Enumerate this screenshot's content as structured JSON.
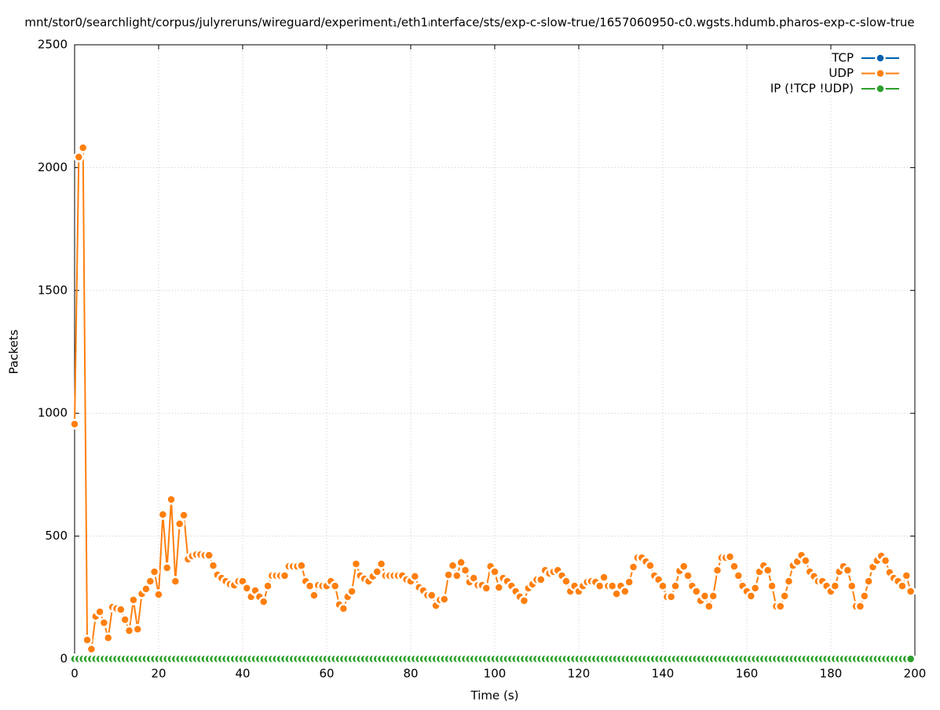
{
  "chart_data": {
    "type": "line",
    "title": "mnt/stor0/searchlight/corpus/julyreruns/wireguard/experiment₁/eth1ᵢnterface/sts/exp-c-slow-true/1657060950-c0.wgsts.hdumb.pharos-exp-c-slow-true",
    "x_label": "Time (s)",
    "y_label": "Packets",
    "x": [
      0,
      1,
      2,
      3,
      4,
      5,
      6,
      7,
      8,
      9,
      10,
      11,
      12,
      13,
      14,
      15,
      16,
      17,
      18,
      19,
      20,
      21,
      22,
      23,
      24,
      25,
      26,
      27,
      28,
      29,
      30,
      31,
      32,
      33,
      34,
      35,
      36,
      37,
      38,
      39,
      40,
      41,
      42,
      43,
      44,
      45,
      46,
      47,
      48,
      49,
      50,
      51,
      52,
      53,
      54,
      55,
      56,
      57,
      58,
      59,
      60,
      61,
      62,
      63,
      64,
      65,
      66,
      67,
      68,
      69,
      70,
      71,
      72,
      73,
      74,
      75,
      76,
      77,
      78,
      79,
      80,
      81,
      82,
      83,
      84,
      85,
      86,
      87,
      88,
      89,
      90,
      91,
      92,
      93,
      94,
      95,
      96,
      97,
      98,
      99,
      100,
      101,
      102,
      103,
      104,
      105,
      106,
      107,
      108,
      109,
      110,
      111,
      112,
      113,
      114,
      115,
      116,
      117,
      118,
      119,
      120,
      121,
      122,
      123,
      124,
      125,
      126,
      127,
      128,
      129,
      130,
      131,
      132,
      133,
      134,
      135,
      136,
      137,
      138,
      139,
      140,
      141,
      142,
      143,
      144,
      145,
      146,
      147,
      148,
      149,
      150,
      151,
      152,
      153,
      154,
      155,
      156,
      157,
      158,
      159,
      160,
      161,
      162,
      163,
      164,
      165,
      166,
      167,
      168,
      169,
      170,
      171,
      172,
      173,
      174,
      175,
      176,
      177,
      178,
      179,
      180,
      181,
      182,
      183,
      184,
      185,
      186,
      187,
      188,
      189,
      190,
      191,
      192,
      193,
      194,
      195,
      196,
      197,
      198,
      199
    ],
    "series": [
      {
        "name": "TCP",
        "color": "#0060ad",
        "values": [
          0,
          0,
          0,
          0,
          0,
          0,
          0,
          0,
          0,
          0,
          0,
          0,
          0,
          0,
          0,
          0,
          0,
          0,
          0,
          0,
          0,
          0,
          0,
          0,
          0,
          0,
          0,
          0,
          0,
          0,
          0,
          0,
          0,
          0,
          0,
          0,
          0,
          0,
          0,
          0,
          0,
          0,
          0,
          0,
          0,
          0,
          0,
          0,
          0,
          0,
          0,
          0,
          0,
          0,
          0,
          0,
          0,
          0,
          0,
          0,
          0,
          0,
          0,
          0,
          0,
          0,
          0,
          0,
          0,
          0,
          0,
          0,
          0,
          0,
          0,
          0,
          0,
          0,
          0,
          0,
          0,
          0,
          0,
          0,
          0,
          0,
          0,
          0,
          0,
          0,
          0,
          0,
          0,
          0,
          0,
          0,
          0,
          0,
          0,
          0,
          0,
          0,
          0,
          0,
          0,
          0,
          0,
          0,
          0,
          0,
          0,
          0,
          0,
          0,
          0,
          0,
          0,
          0,
          0,
          0,
          0,
          0,
          0,
          0,
          0,
          0,
          0,
          0,
          0,
          0,
          0,
          0,
          0,
          0,
          0,
          0,
          0,
          0,
          0,
          0,
          0,
          0,
          0,
          0,
          0,
          0,
          0,
          0,
          0,
          0,
          0,
          0,
          0,
          0,
          0,
          0,
          0,
          0,
          0,
          0,
          0,
          0,
          0,
          0,
          0,
          0,
          0,
          0,
          0,
          0,
          0,
          0,
          0,
          0,
          0,
          0,
          0,
          0,
          0,
          0,
          0,
          0,
          0,
          0,
          0,
          0,
          0,
          0,
          0,
          0,
          0,
          0,
          0,
          0,
          0,
          0,
          0,
          0,
          0,
          0
        ]
      },
      {
        "name": "UDP",
        "color": "#ff7f0e",
        "values": [
          956,
          2043,
          2081,
          77,
          40,
          173,
          192,
          147,
          86,
          211,
          205,
          201,
          160,
          115,
          240,
          121,
          265,
          285,
          316,
          355,
          262,
          588,
          371,
          649,
          316,
          550,
          585,
          406,
          419,
          425,
          425,
          422,
          422,
          380,
          342,
          329,
          316,
          304,
          300,
          316,
          316,
          288,
          253,
          278,
          253,
          233,
          297,
          339,
          339,
          339,
          339,
          377,
          377,
          377,
          380,
          316,
          297,
          259,
          300,
          297,
          297,
          316,
          297,
          221,
          205,
          253,
          275,
          387,
          339,
          326,
          316,
          336,
          355,
          387,
          339,
          339,
          339,
          339,
          339,
          323,
          316,
          336,
          291,
          278,
          259,
          259,
          217,
          240,
          243,
          342,
          380,
          339,
          393,
          361,
          313,
          329,
          300,
          300,
          288,
          377,
          355,
          291,
          329,
          316,
          297,
          275,
          253,
          237,
          288,
          304,
          323,
          323,
          361,
          348,
          355,
          361,
          339,
          316,
          275,
          297,
          275,
          297,
          313,
          316,
          313,
          297,
          332,
          297,
          297,
          265,
          297,
          275,
          313,
          374,
          412,
          412,
          396,
          380,
          339,
          323,
          297,
          253,
          253,
          297,
          358,
          377,
          339,
          297,
          275,
          237,
          256,
          214,
          256,
          361,
          412,
          412,
          416,
          377,
          339,
          297,
          275,
          256,
          288,
          355,
          380,
          361,
          297,
          214,
          214,
          256,
          316,
          380,
          396,
          422,
          400,
          355,
          336,
          316,
          316,
          297,
          275,
          297,
          355,
          377,
          361,
          297,
          214,
          214,
          256,
          316,
          374,
          400,
          419,
          400,
          352,
          329,
          316,
          297,
          339,
          275
        ]
      },
      {
        "name": "IP (!TCP  !UDP)",
        "color": "#2ca02c",
        "values": [
          0,
          0,
          0,
          0,
          0,
          0,
          0,
          0,
          0,
          0,
          0,
          0,
          0,
          0,
          0,
          0,
          0,
          0,
          0,
          0,
          0,
          0,
          0,
          0,
          0,
          0,
          0,
          0,
          0,
          0,
          0,
          0,
          0,
          0,
          0,
          0,
          0,
          0,
          0,
          0,
          0,
          0,
          0,
          0,
          0,
          0,
          0,
          0,
          0,
          0,
          0,
          0,
          0,
          0,
          0,
          0,
          0,
          0,
          0,
          0,
          0,
          0,
          0,
          0,
          0,
          0,
          0,
          0,
          0,
          0,
          0,
          0,
          0,
          0,
          0,
          0,
          0,
          0,
          0,
          0,
          0,
          0,
          0,
          0,
          0,
          0,
          0,
          0,
          0,
          0,
          0,
          0,
          0,
          0,
          0,
          0,
          0,
          0,
          0,
          0,
          0,
          0,
          0,
          0,
          0,
          0,
          0,
          0,
          0,
          0,
          0,
          0,
          0,
          0,
          0,
          0,
          0,
          0,
          0,
          0,
          0,
          0,
          0,
          0,
          0,
          0,
          0,
          0,
          0,
          0,
          0,
          0,
          0,
          0,
          0,
          0,
          0,
          0,
          0,
          0,
          0,
          0,
          0,
          0,
          0,
          0,
          0,
          0,
          0,
          0,
          0,
          0,
          0,
          0,
          0,
          0,
          0,
          0,
          0,
          0,
          0,
          0,
          0,
          0,
          0,
          0,
          0,
          0,
          0,
          0,
          0,
          0,
          0,
          0,
          0,
          0,
          0,
          0,
          0,
          0,
          0,
          0,
          0,
          0,
          0,
          0,
          0,
          0,
          0,
          0,
          0,
          0,
          0,
          0,
          0,
          0,
          0,
          0,
          0,
          0
        ]
      }
    ],
    "xlim": [
      0,
      200
    ],
    "xticks": [
      0,
      20,
      40,
      60,
      80,
      100,
      120,
      140,
      160,
      180,
      200
    ],
    "ylim": [
      0,
      2500
    ],
    "yticks": [
      0,
      500,
      1000,
      1500,
      2000,
      2500
    ],
    "grid": true,
    "legend": "top-right"
  }
}
